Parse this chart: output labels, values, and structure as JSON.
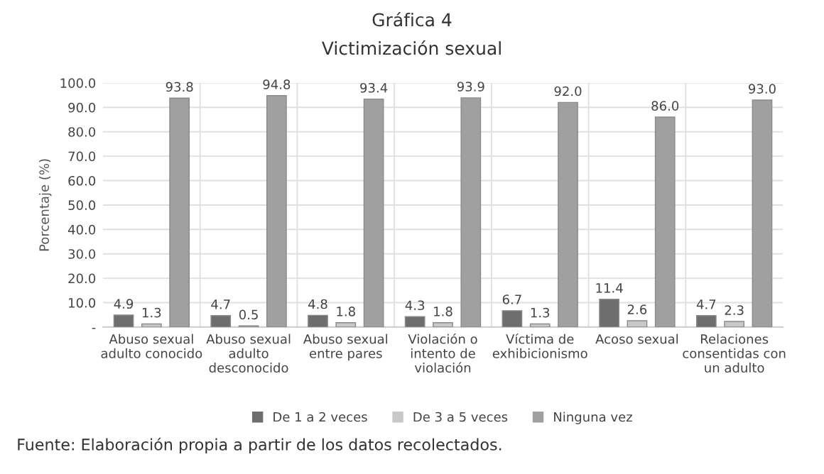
{
  "chart_data": {
    "type": "bar",
    "title": "Gráfica 4",
    "subtitle": "Victimización sexual",
    "ylabel": "Porcentaje (%)",
    "categories": [
      "Abuso sexual\nadulto conocido",
      "Abuso sexual\nadulto\ndesconocido",
      "Abuso sexual\nentre pares",
      "Violación o\nintento de\nviolación",
      "Víctima de\nexhibicionismo",
      "Acoso sexual",
      "Relaciones\nconsentidas con\nun adulto"
    ],
    "series": [
      {
        "name": "De 1 a 2 veces",
        "color": "#6e6e6e",
        "values": [
          4.9,
          4.7,
          4.8,
          4.3,
          6.7,
          11.4,
          4.7
        ],
        "value_labels": [
          "4.9",
          "4.7",
          "4.8",
          "4.3",
          "6.7",
          "11.4",
          "4.7"
        ]
      },
      {
        "name": "De 3 a 5 veces",
        "color": "#c8c8c8",
        "values": [
          1.3,
          0.5,
          1.8,
          1.8,
          1.3,
          2.6,
          2.3
        ],
        "value_labels": [
          "1.3",
          "0.5",
          "1.8",
          "1.8",
          "1.3",
          "2.6",
          "2.3"
        ]
      },
      {
        "name": "Ninguna vez",
        "color": "#a0a0a0",
        "values": [
          93.8,
          94.8,
          93.4,
          93.9,
          92.0,
          86.0,
          93.0
        ],
        "value_labels": [
          "93.8",
          "94.8",
          "93.4",
          "93.9",
          "92.0",
          "86.0",
          "93.0"
        ]
      }
    ],
    "ylim": [
      0,
      100
    ],
    "yticks": [
      {
        "value": 0,
        "label": "-"
      },
      {
        "value": 10,
        "label": "10.0"
      },
      {
        "value": 20,
        "label": "20.0"
      },
      {
        "value": 30,
        "label": "30.0"
      },
      {
        "value": 40,
        "label": "40.0"
      },
      {
        "value": 50,
        "label": "50.0"
      },
      {
        "value": 60,
        "label": "60.0"
      },
      {
        "value": 70,
        "label": "70.0"
      },
      {
        "value": 80,
        "label": "80.0"
      },
      {
        "value": 90,
        "label": "90.0"
      },
      {
        "value": 100,
        "label": "100.0"
      }
    ],
    "grid": true,
    "legend": "bottom",
    "annotations": [
      "Fuente: Elaboración propia a partir de los datos recolectados."
    ]
  }
}
